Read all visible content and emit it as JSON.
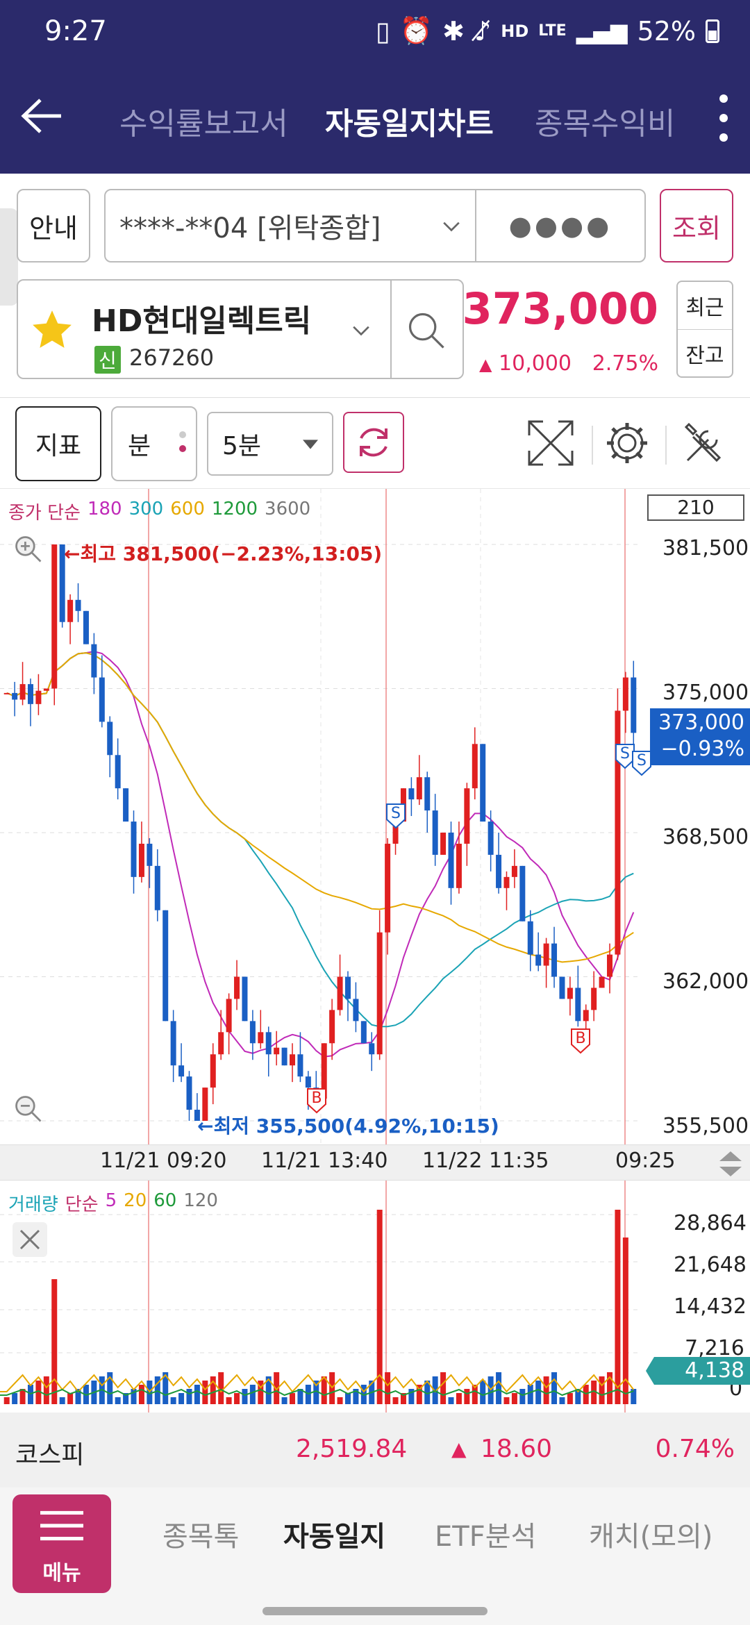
{
  "status": {
    "time": "9:27",
    "battery": "52%",
    "hd": "HD",
    "lte": "LTE"
  },
  "nav": {
    "tabs": [
      "수익률보고서",
      "자동일지차트",
      "종목수익비"
    ],
    "active_tab": "자동일지차트"
  },
  "account": {
    "guide_label": "안내",
    "account_value": "****-**04 [위탁종합]",
    "password_mask": "●●●●",
    "query_label": "조회"
  },
  "stock": {
    "name": "HD현대일렉트릭",
    "badge": "신",
    "code": "267260",
    "price": "373,000",
    "change": "10,000",
    "change_pct": "2.75%",
    "recent_label": "최근",
    "balance_label": "잔고"
  },
  "toolbar": {
    "indicator_label": "지표",
    "minute_label": "분",
    "interval_value": "5분"
  },
  "chart": {
    "legend_prefix": "종가 단순",
    "ma": [
      {
        "name": "180",
        "color": "#c02ab8"
      },
      {
        "name": "300",
        "color": "#1aa3b5"
      },
      {
        "name": "600",
        "color": "#e6a800"
      },
      {
        "name": "1200",
        "color": "#1e9a3a"
      },
      {
        "name": "3600",
        "color": "#777777"
      }
    ],
    "count_box": "210",
    "high_label": "최고 381,500(−2.23%,13:05)",
    "low_label": "최저 355,500(4.92%,10:15)",
    "y_ticks": [
      "381,500",
      "375,000",
      "368,500",
      "362,000",
      "355,500"
    ],
    "current_price": "373,000",
    "current_pct": "−0.93%",
    "x_labels": [
      "11/21 09:20",
      "11/21 13:40",
      "11/22 11:35",
      "09:25"
    ],
    "markers": [
      "S",
      "S",
      "S",
      "B",
      "B"
    ]
  },
  "volume": {
    "legend_prefix": "거래량",
    "legend_mode": "단순",
    "ma": [
      {
        "name": "5",
        "color": "#c02ab8"
      },
      {
        "name": "20",
        "color": "#e6a800"
      },
      {
        "name": "60",
        "color": "#1e9a3a"
      },
      {
        "name": "120",
        "color": "#777777"
      }
    ],
    "y_ticks": [
      "28,864",
      "21,648",
      "14,432",
      "7,216",
      "0"
    ],
    "current": "4,138"
  },
  "kospi": {
    "label": "코스피",
    "value": "2,519.84",
    "change": "18.60",
    "pct": "0.74%"
  },
  "bottom": {
    "menu_label": "메뉴",
    "tabs": [
      "종목톡",
      "자동일지",
      "ETF분석",
      "캐치(모의)"
    ],
    "active": "자동일지"
  },
  "chart_data": {
    "type": "candlestick",
    "ylim": [
      355500,
      381500
    ],
    "high": 381500,
    "low": 355500,
    "last": 373000,
    "x_tick_labels": [
      "11/21 09:20",
      "11/21 13:40",
      "11/22 11:35",
      "09:25"
    ],
    "close_path": [
      374800,
      374500,
      375200,
      374300,
      374900,
      375000,
      381500,
      378000,
      379000,
      378500,
      377000,
      375500,
      373500,
      372000,
      370500,
      369000,
      366500,
      368000,
      367000,
      365000,
      360000,
      358000,
      357500,
      356000,
      355500,
      357000,
      358500,
      359500,
      361000,
      362000,
      360000,
      359000,
      359500,
      358500,
      358800,
      358000,
      358500,
      357500,
      357000,
      356500,
      359000,
      360500,
      362000,
      361000,
      360000,
      359000,
      358500,
      364000,
      368000,
      369000,
      370500,
      370000,
      371000,
      369500,
      367500,
      368500,
      366000,
      368000,
      370500,
      372500,
      369000,
      367500,
      366000,
      366500,
      367000,
      364500,
      363000,
      362500,
      363500,
      362000,
      361000,
      361500,
      360000,
      360500,
      361500,
      362000,
      363000,
      374000,
      375500,
      373000
    ]
  }
}
